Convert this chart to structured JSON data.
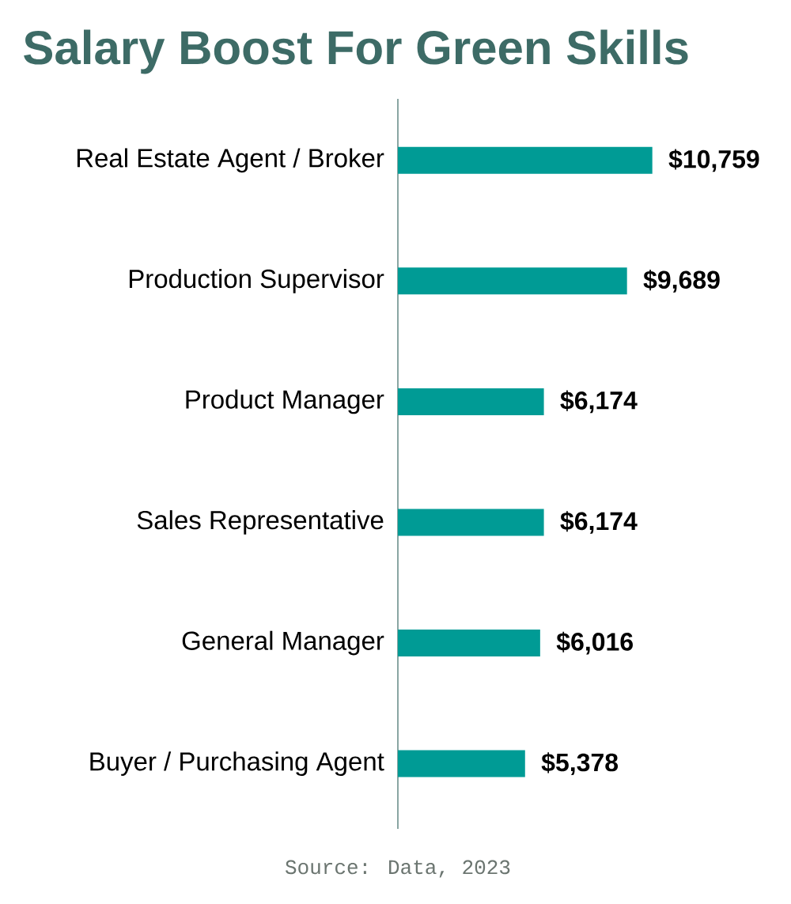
{
  "chart_data": {
    "type": "bar",
    "orientation": "horizontal",
    "title": "Salary Boost For Green Skills",
    "categories": [
      "Real Estate Agent / Broker",
      "Production Supervisor",
      "Product Manager",
      "Sales Representative",
      "General Manager",
      "Buyer / Purchasing Agent"
    ],
    "values": [
      10759,
      9689,
      6174,
      6174,
      6016,
      5378
    ],
    "value_labels": [
      "$10,759",
      "$9,689",
      "$6,174",
      "$6,174",
      "$6,016",
      "$5,378"
    ],
    "color": "#009b95",
    "annotations": [
      "Source: Data, 2023"
    ]
  }
}
